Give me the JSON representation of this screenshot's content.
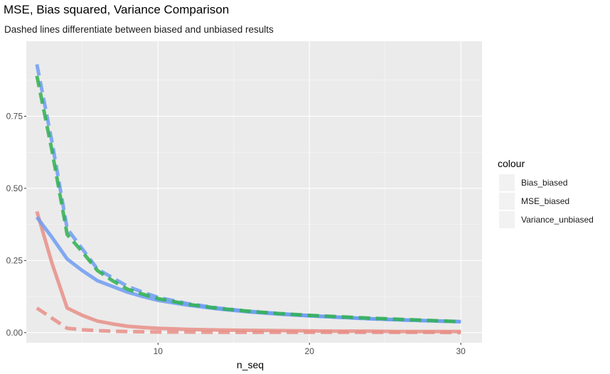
{
  "chart_data": {
    "type": "line",
    "title": "MSE, Bias squared, Variance Comparison",
    "subtitle": "Dashed lines differentiate between biased and unbiased results",
    "xlabel": "n_seq",
    "ylabel": "",
    "xlim": [
      1.3,
      31.4
    ],
    "ylim": [
      -0.035,
      1.01
    ],
    "x_ticks": [
      10,
      20,
      30
    ],
    "x_tick_labels": [
      "10",
      "20",
      "30"
    ],
    "y_ticks": [
      0.0,
      0.25,
      0.5,
      0.75
    ],
    "y_tick_labels": [
      "0.00",
      "0.25",
      "0.50",
      "0.75"
    ],
    "grid": true,
    "legend": {
      "title": "colour",
      "position": "right",
      "entries": [
        "Bias_biased",
        "MSE_biased",
        "Variance_unbiased"
      ]
    },
    "x": [
      2,
      3,
      4,
      5,
      6,
      7,
      8,
      9,
      10,
      12,
      14,
      16,
      18,
      20,
      22,
      24,
      26,
      28,
      30
    ],
    "series": [
      {
        "color": "#e88f87",
        "dashed": false,
        "values": [
          0.42,
          0.24,
          0.085,
          0.06,
          0.04,
          0.03,
          0.022,
          0.018,
          0.015,
          0.011,
          0.009,
          0.008,
          0.007,
          0.006,
          0.005,
          0.005,
          0.004,
          0.004,
          0.004
        ]
      },
      {
        "color": "#e88f87",
        "dashed": true,
        "values": [
          0.085,
          0.05,
          0.015,
          0.01,
          0.007,
          0.005,
          0.004,
          0.003,
          0.002,
          0.002,
          0.001,
          0.001,
          0.001,
          0.001,
          0.001,
          0.001,
          0.001,
          0.001,
          0.0
        ]
      },
      {
        "color": "#6e9cf2",
        "dashed": false,
        "values": [
          0.4,
          0.33,
          0.255,
          0.215,
          0.18,
          0.16,
          0.14,
          0.125,
          0.112,
          0.095,
          0.082,
          0.072,
          0.064,
          0.058,
          0.053,
          0.048,
          0.044,
          0.041,
          0.038
        ]
      },
      {
        "color": "#6e9cf2",
        "dashed": true,
        "values": [
          0.93,
          0.66,
          0.36,
          0.29,
          0.22,
          0.19,
          0.16,
          0.14,
          0.122,
          0.1,
          0.085,
          0.074,
          0.066,
          0.059,
          0.053,
          0.048,
          0.044,
          0.041,
          0.038
        ]
      },
      {
        "color": "#2fb14f",
        "dashed": true,
        "values": [
          0.89,
          0.63,
          0.34,
          0.28,
          0.215,
          0.18,
          0.15,
          0.133,
          0.118,
          0.098,
          0.084,
          0.074,
          0.066,
          0.06,
          0.055,
          0.05,
          0.046,
          0.042,
          0.038
        ]
      }
    ]
  }
}
